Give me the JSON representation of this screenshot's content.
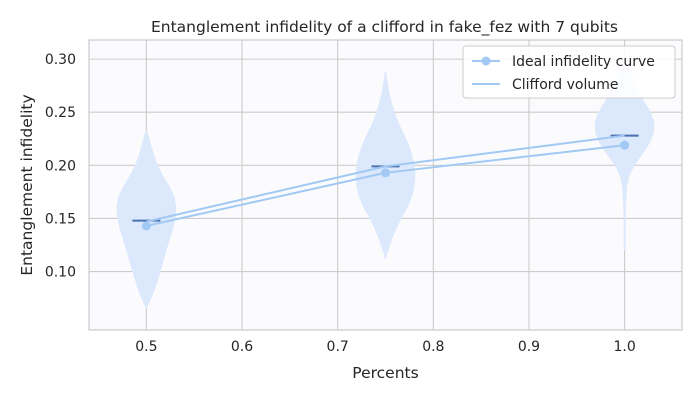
{
  "chart_data": {
    "type": "line",
    "title": "Entanglement infidelity of a clifford in fake_fez with 7 qubits",
    "xlabel": "Percents",
    "ylabel": "Entanglement infidelity",
    "xlim": [
      0.44,
      1.06
    ],
    "ylim": [
      0.045,
      0.318
    ],
    "xticks": [
      0.5,
      0.6,
      0.7,
      0.8,
      0.9,
      1.0
    ],
    "xtick_labels": [
      "0.5",
      "0.6",
      "0.7",
      "0.8",
      "0.9",
      "1.0"
    ],
    "yticks": [
      0.1,
      0.15,
      0.2,
      0.25,
      0.3
    ],
    "ytick_labels": [
      "0.10",
      "0.15",
      "0.20",
      "0.25",
      "0.30"
    ],
    "grid": true,
    "legend_position": "top-right",
    "series": [
      {
        "name": "Ideal infidelity curve",
        "markers": true,
        "x": [
          0.5,
          0.75,
          1.0
        ],
        "y": [
          0.143,
          0.193,
          0.219
        ]
      },
      {
        "name": "Clifford volume",
        "markers": false,
        "x": [
          0.5,
          0.75,
          1.0
        ],
        "y": [
          0.147,
          0.199,
          0.228
        ]
      }
    ],
    "violins": [
      {
        "x": 0.5,
        "median": 0.148,
        "min": 0.065,
        "max": 0.233,
        "profile": [
          [
            0.065,
            0.0
          ],
          [
            0.07,
            0.09
          ],
          [
            0.08,
            0.24
          ],
          [
            0.09,
            0.36
          ],
          [
            0.1,
            0.47
          ],
          [
            0.11,
            0.57
          ],
          [
            0.12,
            0.67
          ],
          [
            0.13,
            0.78
          ],
          [
            0.14,
            0.89
          ],
          [
            0.15,
            0.97
          ],
          [
            0.16,
            1.0
          ],
          [
            0.17,
            0.94
          ],
          [
            0.18,
            0.78
          ],
          [
            0.19,
            0.56
          ],
          [
            0.2,
            0.38
          ],
          [
            0.21,
            0.25
          ],
          [
            0.22,
            0.15
          ],
          [
            0.23,
            0.05
          ],
          [
            0.233,
            0.0
          ]
        ]
      },
      {
        "x": 0.75,
        "median": 0.199,
        "min": 0.112,
        "max": 0.288,
        "profile": [
          [
            0.112,
            0.0
          ],
          [
            0.12,
            0.1
          ],
          [
            0.13,
            0.21
          ],
          [
            0.14,
            0.36
          ],
          [
            0.15,
            0.53
          ],
          [
            0.16,
            0.73
          ],
          [
            0.17,
            0.88
          ],
          [
            0.18,
            0.97
          ],
          [
            0.19,
            1.0
          ],
          [
            0.2,
            0.97
          ],
          [
            0.21,
            0.89
          ],
          [
            0.22,
            0.77
          ],
          [
            0.23,
            0.61
          ],
          [
            0.24,
            0.44
          ],
          [
            0.25,
            0.3
          ],
          [
            0.26,
            0.2
          ],
          [
            0.27,
            0.12
          ],
          [
            0.28,
            0.06
          ],
          [
            0.288,
            0.0
          ]
        ]
      },
      {
        "x": 1.0,
        "median": 0.228,
        "min": 0.12,
        "max": 0.3,
        "profile": [
          [
            0.12,
            0.0
          ],
          [
            0.14,
            0.02
          ],
          [
            0.16,
            0.04
          ],
          [
            0.18,
            0.08
          ],
          [
            0.19,
            0.16
          ],
          [
            0.2,
            0.33
          ],
          [
            0.21,
            0.58
          ],
          [
            0.22,
            0.82
          ],
          [
            0.23,
            0.97
          ],
          [
            0.24,
            1.0
          ],
          [
            0.25,
            0.88
          ],
          [
            0.26,
            0.66
          ],
          [
            0.27,
            0.45
          ],
          [
            0.28,
            0.3
          ],
          [
            0.29,
            0.17
          ],
          [
            0.3,
            0.0
          ]
        ]
      }
    ]
  },
  "colors": {
    "background": "#ffffff",
    "plot_background": "#fbfbfe",
    "grid": "#cccccc",
    "axis": "#cccccc",
    "violin_fill": "#dce8fb",
    "violin_median": "#4a72b0",
    "line": "#a1c9f4"
  }
}
